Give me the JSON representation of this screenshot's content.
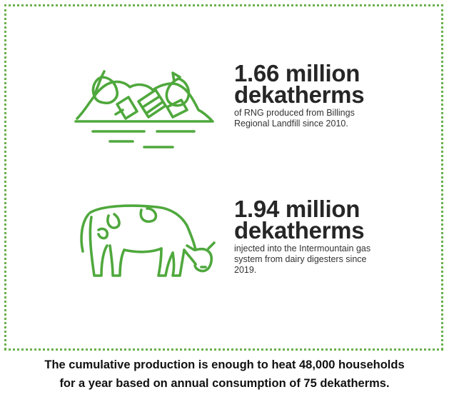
{
  "colors": {
    "accent_green": "#4fa83d",
    "border_green": "#6ab04c",
    "text_dark": "#262626"
  },
  "stats": [
    {
      "icon": "landfill-icon",
      "value": "1.66 million",
      "unit": "dekatherms",
      "description": "of RNG produced from Billings Regional Landfill since 2010."
    },
    {
      "icon": "cow-icon",
      "value": "1.94 million",
      "unit": "dekatherms",
      "description": "injected into the Intermountain gas system from dairy digesters since 2019."
    }
  ],
  "footer": {
    "line1": "The cumulative production is enough to heat 48,000 households",
    "line2": "for a year based on annual consumption of 75 dekatherms."
  }
}
